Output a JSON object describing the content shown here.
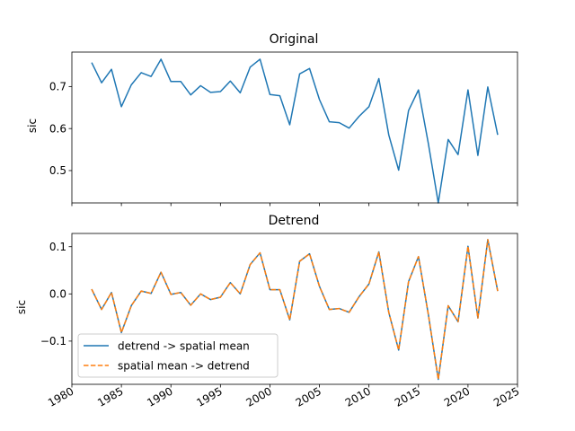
{
  "chart_data": [
    {
      "type": "line",
      "title": "Original",
      "xlabel": "",
      "ylabel": "sic",
      "xlim": [
        1980,
        2025
      ],
      "ylim": [
        0.423,
        0.782
      ],
      "xticks": [
        1980,
        1985,
        1990,
        1995,
        2000,
        2005,
        2010,
        2015,
        2020,
        2025
      ],
      "yticks": [
        0.5,
        0.6,
        0.7
      ],
      "ytick_labels": [
        "0.5",
        "0.6",
        "0.7"
      ],
      "x": [
        1982,
        1983,
        1984,
        1985,
        1986,
        1987,
        1988,
        1989,
        1990,
        1991,
        1992,
        1993,
        1994,
        1995,
        1996,
        1997,
        1998,
        1999,
        2000,
        2001,
        2002,
        2003,
        2004,
        2005,
        2006,
        2007,
        2008,
        2009,
        2010,
        2011,
        2012,
        2013,
        2014,
        2015,
        2016,
        2017,
        2018,
        2019,
        2020,
        2021,
        2022,
        2023
      ],
      "series": [
        {
          "color": "#1f77b4",
          "style": "solid",
          "values": [
            0.757,
            0.709,
            0.741,
            0.652,
            0.704,
            0.733,
            0.724,
            0.765,
            0.712,
            0.712,
            0.68,
            0.702,
            0.686,
            0.688,
            0.713,
            0.685,
            0.746,
            0.765,
            0.681,
            0.678,
            0.609,
            0.73,
            0.743,
            0.669,
            0.616,
            0.614,
            0.601,
            0.629,
            0.652,
            0.719,
            0.585,
            0.501,
            0.643,
            0.692,
            0.564,
            0.423,
            0.574,
            0.538,
            0.692,
            0.536,
            0.699,
            0.585
          ]
        }
      ]
    },
    {
      "type": "line",
      "title": "Detrend",
      "xlabel": "",
      "ylabel": "sic",
      "xlim": [
        1980,
        2025
      ],
      "ylim": [
        -0.1915,
        0.128
      ],
      "xticks": [
        1980,
        1985,
        1990,
        1995,
        2000,
        2005,
        2010,
        2015,
        2020,
        2025
      ],
      "xtick_labels": [
        "1980",
        "1985",
        "1990",
        "1995",
        "2000",
        "2005",
        "2010",
        "2015",
        "2020",
        "2025"
      ],
      "yticks": [
        -0.1,
        0.0,
        0.1
      ],
      "ytick_labels": [
        "−0.1",
        "0.0",
        "0.1"
      ],
      "legend_position": "lower-left",
      "x": [
        1982,
        1983,
        1984,
        1985,
        1986,
        1987,
        1988,
        1989,
        1990,
        1991,
        1992,
        1993,
        1994,
        1995,
        1996,
        1997,
        1998,
        1999,
        2000,
        2001,
        2002,
        2003,
        2004,
        2005,
        2006,
        2007,
        2008,
        2009,
        2010,
        2011,
        2012,
        2013,
        2014,
        2015,
        2016,
        2017,
        2018,
        2019,
        2020,
        2021,
        2022,
        2023
      ],
      "series": [
        {
          "name": "detrend -> spatial mean",
          "color": "#1f77b4",
          "style": "solid",
          "values": [
            0.01,
            -0.033,
            0.003,
            -0.082,
            -0.025,
            0.006,
            0.001,
            0.046,
            -0.001,
            0.003,
            -0.024,
            0.0,
            -0.012,
            -0.007,
            0.024,
            0.0,
            0.062,
            0.087,
            0.009,
            0.009,
            -0.055,
            0.069,
            0.085,
            0.016,
            -0.033,
            -0.031,
            -0.039,
            -0.006,
            0.021,
            0.089,
            -0.039,
            -0.119,
            0.026,
            0.079,
            -0.044,
            -0.181,
            -0.025,
            -0.059,
            0.101,
            -0.051,
            0.115,
            0.006
          ]
        },
        {
          "name": "spatial mean -> detrend",
          "color": "#ff7f0e",
          "style": "dashed",
          "values": [
            0.01,
            -0.033,
            0.003,
            -0.082,
            -0.025,
            0.006,
            0.001,
            0.046,
            -0.001,
            0.003,
            -0.024,
            0.0,
            -0.012,
            -0.007,
            0.024,
            0.0,
            0.062,
            0.087,
            0.009,
            0.009,
            -0.055,
            0.069,
            0.085,
            0.016,
            -0.033,
            -0.031,
            -0.039,
            -0.006,
            0.021,
            0.089,
            -0.039,
            -0.119,
            0.026,
            0.079,
            -0.044,
            -0.181,
            -0.025,
            -0.059,
            0.101,
            -0.051,
            0.115,
            0.006
          ]
        }
      ]
    }
  ]
}
